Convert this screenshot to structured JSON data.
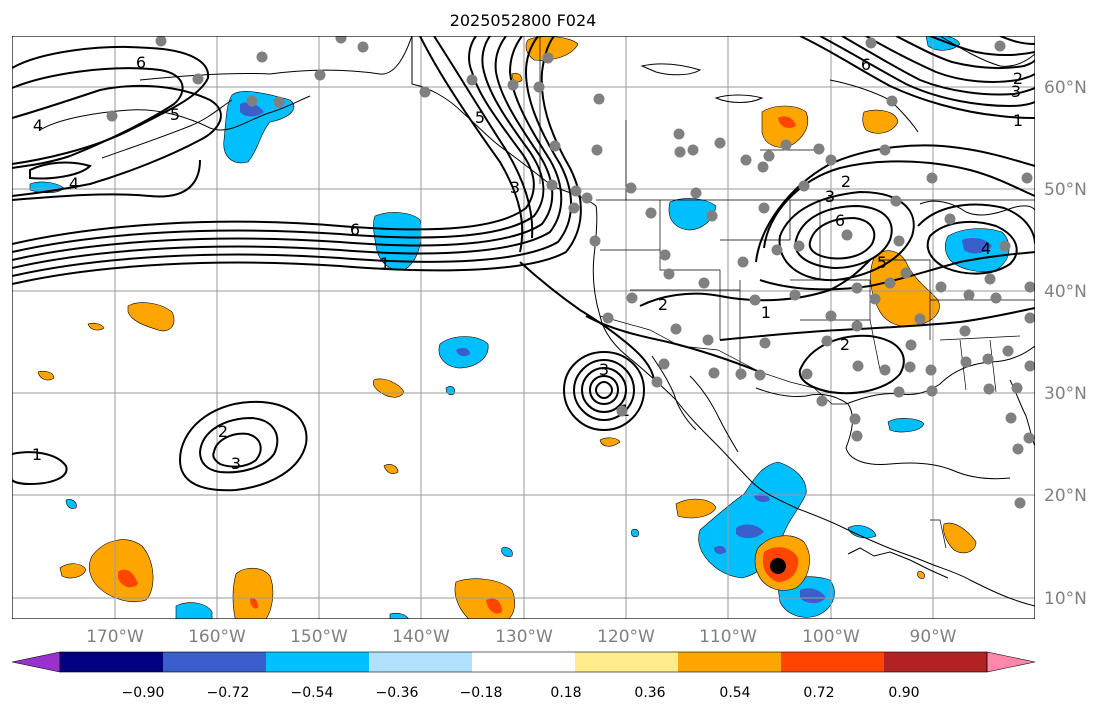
{
  "title": "2025052800 F024",
  "lon_labels": [
    "170°W",
    "160°W",
    "150°W",
    "140°W",
    "130°W",
    "120°W",
    "110°W",
    "100°W",
    "90°W"
  ],
  "lat_labels": [
    "60°N",
    "50°N",
    "40°N",
    "30°N",
    "20°N",
    "10°N"
  ],
  "colorbar": {
    "ticks": [
      "−0.90",
      "−0.72",
      "−0.54",
      "−0.36",
      "−0.18",
      "0.18",
      "0.36",
      "0.54",
      "0.72",
      "0.90"
    ],
    "colors": [
      "#9932CC",
      "#000080",
      "#3A5FCD",
      "#00BFFF",
      "#B0E2FF",
      "#FFFFFF",
      "#FFEC8B",
      "#FFA500",
      "#FF4500",
      "#B22222",
      "#FF88AA"
    ]
  },
  "contour_labels": [
    "6",
    "5",
    "4",
    "4",
    "6",
    "1",
    "5",
    "3",
    "2",
    "3",
    "1",
    "2",
    "1",
    "2",
    "6",
    "3",
    "2",
    "6",
    "5",
    "4",
    "1",
    "2",
    "3",
    "3",
    "1"
  ],
  "colors": {
    "contour": "#000000",
    "grid": "#9a9a9a",
    "station_dot": "#808080",
    "storm_center": "#000000"
  }
}
